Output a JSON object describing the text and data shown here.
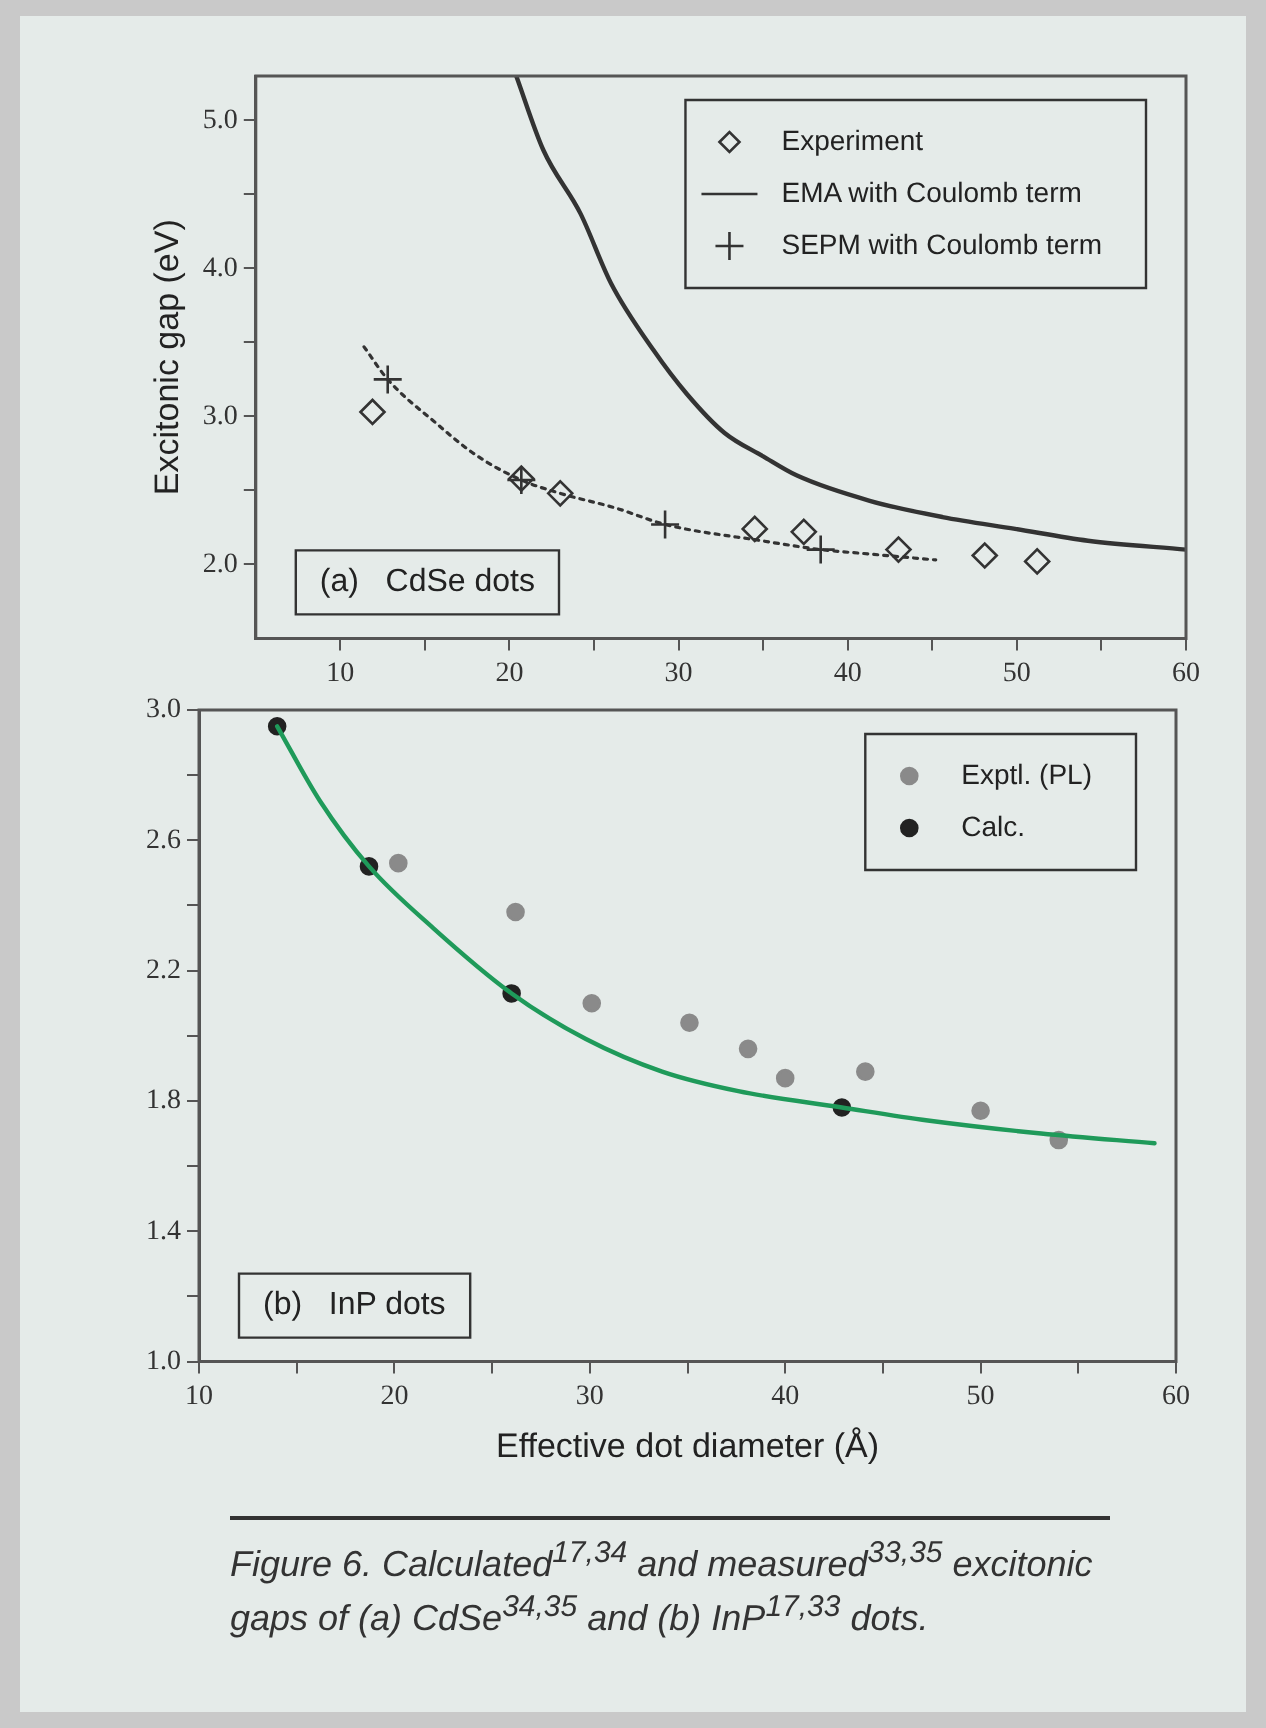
{
  "chart_data": [
    {
      "type": "scatter",
      "ylabel": "Excitonic gap (eV)",
      "xlim": [
        5,
        60
      ],
      "ylim": [
        1.5,
        5.3
      ],
      "xticks": [
        10,
        {
          "value": 15,
          "label": null
        },
        20,
        {
          "value": 25,
          "label": null
        },
        30,
        {
          "value": 35,
          "label": null
        },
        40,
        {
          "value": 45,
          "label": null
        },
        50,
        {
          "value": 55,
          "label": null
        },
        60
      ],
      "yticks": [
        {
          "value": 2,
          "label": "2.0"
        },
        {
          "value": 2.5,
          "label": null
        },
        {
          "value": 3,
          "label": "3.0"
        },
        {
          "value": 3.5,
          "label": null
        },
        {
          "value": 4,
          "label": "4.0"
        },
        {
          "value": 4.5,
          "label": null
        },
        {
          "value": 5,
          "label": "5.0"
        }
      ],
      "grid": false,
      "legend": "top right",
      "annotations": [
        "(a)   CdSe dots"
      ],
      "series": [
        {
          "name": "Experiment",
          "type": "scatter",
          "marker": "diamond",
          "color": "#333333",
          "x": [
            11.9,
            20.7,
            23.0,
            34.5,
            37.4,
            43.0,
            48.1,
            51.2
          ],
          "values": [
            3.03,
            2.58,
            2.48,
            2.24,
            2.22,
            2.1,
            2.06,
            2.02
          ]
        },
        {
          "name": "EMA with Coulomb term",
          "type": "line",
          "marker": "none",
          "line_style": "solid",
          "color": "#333333",
          "x": [
            20.4,
            22,
            24.2,
            26,
            28.5,
            30.5,
            32.7,
            35,
            37.0,
            41.3,
            45.6,
            49.9,
            54.2,
            60
          ],
          "values": [
            5.3,
            4.8,
            4.37,
            3.9,
            3.45,
            3.15,
            2.89,
            2.73,
            2.6,
            2.43,
            2.32,
            2.24,
            2.16,
            2.1
          ]
        },
        {
          "name": "SEPM with Coulomb term",
          "type": "scatter",
          "marker": "cross",
          "color": "#333333",
          "x": [
            12.8,
            20.7,
            29.2,
            38.4
          ],
          "values": [
            3.25,
            2.57,
            2.27,
            2.1
          ]
        },
        {
          "type": "line",
          "marker": "none",
          "line_style": "dotted",
          "color": "#333333",
          "x": [
            11.4,
            12.8,
            15.6,
            18.0,
            20.7,
            23.0,
            26.3,
            29.2,
            34.9,
            38.4,
            41.3,
            45.2
          ],
          "values": [
            3.47,
            3.25,
            2.96,
            2.74,
            2.57,
            2.48,
            2.38,
            2.27,
            2.16,
            2.1,
            2.07,
            2.03
          ]
        }
      ]
    },
    {
      "type": "scatter",
      "xlabel": "Effective dot diameter (Å)",
      "xlim": [
        10,
        60
      ],
      "ylim": [
        1.0,
        3.0
      ],
      "xticks": [
        10,
        {
          "value": 15,
          "label": null
        },
        20,
        {
          "value": 25,
          "label": null
        },
        30,
        {
          "value": 35,
          "label": null
        },
        40,
        {
          "value": 45,
          "label": null
        },
        50,
        {
          "value": 55,
          "label": null
        },
        60
      ],
      "yticks": [
        {
          "value": 1,
          "label": "1.0"
        },
        {
          "value": 1.2,
          "label": null
        },
        1.4,
        {
          "value": 1.6,
          "label": null
        },
        1.8,
        {
          "value": 2,
          "label": null
        },
        2.2,
        {
          "value": 2.4,
          "label": null
        },
        2.6,
        {
          "value": 2.8,
          "label": null
        },
        {
          "value": 3,
          "label": "3.0"
        }
      ],
      "grid": false,
      "legend": "top right",
      "annotations": [
        "(b)   InP dots",
        "Figure 6. Calculated$^{17,34}$ and measured$^{33,35}$ excitonic gaps of (a) CdSe$^{34,35}$ and (b) InP$^{17,33}$ dots."
      ],
      "series": [
        {
          "type": "line",
          "marker": "none",
          "line_style": "solid",
          "color": "#1f9a5a",
          "x": [
            14.0,
            16.2,
            18.7,
            22.0,
            26.0,
            29.8,
            33.7,
            37.6,
            42.9,
            47.3,
            53.1,
            58.9
          ],
          "values": [
            2.95,
            2.72,
            2.52,
            2.33,
            2.13,
            1.99,
            1.89,
            1.83,
            1.78,
            1.74,
            1.7,
            1.67
          ]
        },
        {
          "name": "Exptl. (PL)",
          "type": "scatter",
          "marker": "circle",
          "color": "#8a8a8a",
          "x": [
            20.2,
            26.2,
            30.1,
            35.1,
            38.1,
            40.0,
            44.1,
            50.0,
            54.0
          ],
          "values": [
            2.53,
            2.38,
            2.1,
            2.04,
            1.96,
            1.87,
            1.89,
            1.77,
            1.68
          ]
        },
        {
          "name": "Calc.",
          "type": "scatter",
          "marker": "circle",
          "color": "#222222",
          "x": [
            14.0,
            18.7,
            26.0,
            42.9
          ],
          "values": [
            2.95,
            2.52,
            2.13,
            1.78
          ]
        }
      ]
    }
  ]
}
